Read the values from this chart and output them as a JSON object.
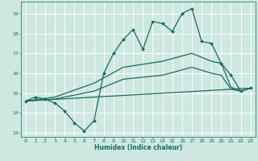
{
  "xlabel": "Humidex (Indice chaleur)",
  "bg_color": "#cce8e0",
  "grid_color": "#ffffff",
  "line_color": "#1a6b5a",
  "xlim": [
    -0.5,
    23.5
  ],
  "ylim": [
    12.8,
    19.6
  ],
  "yticks": [
    13,
    14,
    15,
    16,
    17,
    18,
    19
  ],
  "xticks": [
    0,
    1,
    2,
    3,
    4,
    5,
    6,
    7,
    8,
    9,
    10,
    11,
    12,
    13,
    14,
    15,
    16,
    17,
    18,
    19,
    20,
    21,
    22,
    23
  ],
  "line_main": {
    "x": [
      0,
      1,
      2,
      3,
      4,
      5,
      6,
      7,
      8,
      9,
      10,
      11,
      12,
      13,
      14,
      15,
      16,
      17,
      18,
      19,
      20,
      21,
      22,
      23
    ],
    "y": [
      14.6,
      14.8,
      14.7,
      14.5,
      14.1,
      13.5,
      13.1,
      13.6,
      16.0,
      17.0,
      17.7,
      18.2,
      17.2,
      18.6,
      18.5,
      18.1,
      19.0,
      19.25,
      17.6,
      17.5,
      16.5,
      15.9,
      15.1,
      15.25
    ]
  },
  "line_upper": {
    "x": [
      0,
      3,
      7,
      10,
      14,
      17,
      19,
      20,
      21,
      22,
      23
    ],
    "y": [
      14.6,
      14.8,
      15.5,
      16.3,
      16.6,
      17.0,
      16.6,
      16.5,
      15.3,
      15.1,
      15.25
    ]
  },
  "line_mid": {
    "x": [
      0,
      3,
      7,
      10,
      14,
      17,
      19,
      20,
      21,
      22,
      23
    ],
    "y": [
      14.6,
      14.7,
      15.1,
      15.7,
      15.9,
      16.3,
      16.0,
      15.9,
      15.2,
      15.1,
      15.25
    ]
  },
  "line_lower": {
    "x": [
      0,
      23
    ],
    "y": [
      14.6,
      15.25
    ]
  }
}
